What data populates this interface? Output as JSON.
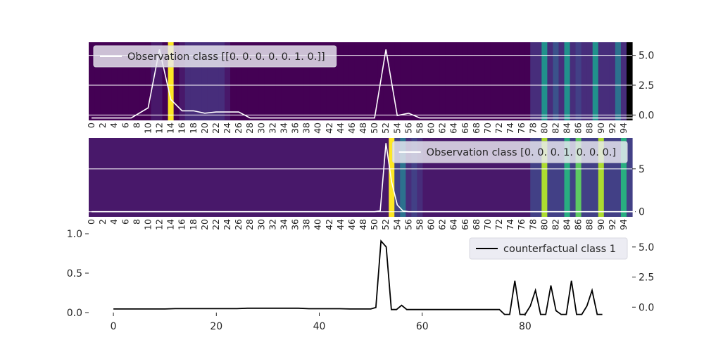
{
  "chart_data": [
    {
      "type": "heatmap",
      "panel": "observation-1",
      "x_tick_labels": [
        "0",
        "2",
        "4",
        "6",
        "8",
        "10",
        "12",
        "14",
        "16",
        "18",
        "20",
        "22",
        "24",
        "26",
        "28",
        "30",
        "32",
        "34",
        "36",
        "38",
        "40",
        "42",
        "44",
        "46",
        "48",
        "50",
        "52",
        "54",
        "56",
        "58",
        "60",
        "62",
        "64",
        "66",
        "68",
        "70",
        "72",
        "74",
        "76",
        "78",
        "80",
        "82",
        "84",
        "86",
        "88",
        "90",
        "92",
        "94"
      ],
      "y_ticks": [
        0.0,
        2.5,
        5.0
      ],
      "y_tick_labels": [
        "0.0",
        "2.5",
        "5.0"
      ],
      "ylim": [
        -0.45,
        6.1
      ],
      "grid": true,
      "legend_placement": "top-left",
      "series": [
        {
          "name": "Observation class [[0. 0. 0. 0. 0. 1. 0.]]",
          "color": "#ffffff",
          "x": [
            0,
            7,
            10,
            12,
            14,
            16,
            18,
            20,
            22,
            24,
            26,
            28,
            30,
            32,
            34,
            36,
            38,
            40,
            42,
            44,
            46,
            48,
            50,
            52,
            54,
            56,
            58,
            60,
            62,
            64,
            66,
            68,
            70,
            72,
            74,
            76,
            78,
            80,
            82,
            84,
            86,
            88,
            90,
            92,
            94,
            96
          ],
          "values": [
            -0.25,
            -0.25,
            0.6,
            5.5,
            1.3,
            0.35,
            0.35,
            0.15,
            0.25,
            0.25,
            0.25,
            -0.25,
            -0.25,
            -0.25,
            -0.25,
            -0.25,
            -0.25,
            -0.25,
            -0.25,
            -0.25,
            -0.25,
            -0.25,
            -0.25,
            5.5,
            -0.05,
            0.15,
            -0.25,
            -0.25,
            -0.25,
            -0.25,
            -0.25,
            -0.25,
            -0.25,
            -0.25,
            -0.25,
            -0.25,
            -0.25,
            -0.25,
            -0.25,
            -0.25,
            -0.25,
            -0.25,
            -0.25,
            -0.25,
            -0.25,
            -0.25
          ]
        }
      ]
    },
    {
      "type": "heatmap",
      "panel": "observation-2",
      "x_tick_labels": [
        "0",
        "2",
        "4",
        "6",
        "8",
        "10",
        "12",
        "14",
        "16",
        "18",
        "20",
        "22",
        "24",
        "26",
        "28",
        "30",
        "32",
        "34",
        "36",
        "38",
        "40",
        "42",
        "44",
        "46",
        "48",
        "50",
        "52",
        "54",
        "56",
        "58",
        "60",
        "62",
        "64",
        "66",
        "68",
        "70",
        "72",
        "74",
        "76",
        "78",
        "80",
        "82",
        "84",
        "86",
        "88",
        "90",
        "92",
        "94"
      ],
      "y_ticks": [
        0,
        5
      ],
      "y_tick_labels": [
        "0",
        "5"
      ],
      "ylim": [
        -0.6,
        8.6
      ],
      "grid": true,
      "legend_placement": "top-right",
      "series": [
        {
          "name": "Observation class [0. 0. 0. 1. 0. 0. 0.]",
          "color": "#ffffff",
          "x": [
            0,
            50,
            51,
            52,
            53,
            54,
            55,
            56,
            58,
            60,
            70,
            80,
            90,
            96
          ],
          "values": [
            0,
            0,
            0.1,
            8.0,
            3.5,
            0.8,
            0.1,
            0,
            0,
            0,
            0,
            0,
            0,
            0
          ]
        }
      ]
    },
    {
      "type": "line",
      "panel": "counterfactual",
      "x_ticks": [
        0,
        20,
        40,
        60,
        80
      ],
      "x_tick_labels": [
        "0",
        "20",
        "40",
        "60",
        "80"
      ],
      "xlim": [
        -4.8,
        100.8
      ],
      "left_y_ticks": [
        0.0,
        0.5,
        1.0
      ],
      "left_y_tick_labels": [
        "0.0",
        "0.5",
        "1.0"
      ],
      "left_ylim": [
        0,
        1
      ],
      "right_y_ticks": [
        0.0,
        2.5,
        5.0
      ],
      "right_y_tick_labels": [
        "0.0",
        "2.5",
        "5.0"
      ],
      "right_ylim": [
        -0.45,
        6.1
      ],
      "grid": false,
      "legend_placement": "top-right",
      "series": [
        {
          "name": "counterfactual class 1",
          "color": "#000000",
          "x": [
            0,
            10,
            12,
            24,
            26,
            36,
            38,
            44,
            46,
            50,
            51,
            52,
            53,
            54,
            55,
            56,
            57,
            58,
            60,
            70,
            75,
            76,
            77,
            78,
            79,
            80,
            81,
            82,
            83,
            84,
            85,
            86,
            87,
            88,
            89,
            90,
            91,
            92,
            93,
            94,
            95
          ],
          "values": [
            -0.15,
            -0.15,
            -0.12,
            -0.12,
            -0.09,
            -0.09,
            -0.13,
            -0.13,
            -0.15,
            -0.15,
            -0.03,
            5.5,
            5.0,
            -0.2,
            -0.2,
            0.15,
            -0.2,
            -0.2,
            -0.2,
            -0.2,
            -0.2,
            -0.6,
            -0.6,
            2.2,
            -0.6,
            -0.6,
            0.1,
            1.4,
            -0.6,
            -0.6,
            1.8,
            -0.3,
            -0.6,
            -0.6,
            2.2,
            -0.6,
            -0.6,
            0.1,
            1.4,
            -0.6,
            -0.6
          ]
        }
      ]
    }
  ],
  "heatmap": {
    "palette": [
      "#440154",
      "#48186a",
      "#472d7b",
      "#424086",
      "#3b528b",
      "#33638d",
      "#2c728e",
      "#21918c",
      "#28ae80",
      "#5ec962",
      "#addc30",
      "#fde725"
    ],
    "cells_observation_1": [
      0,
      0,
      0,
      0,
      0,
      0,
      0,
      0,
      0,
      0,
      0,
      1,
      1,
      0,
      11,
      0,
      1,
      2,
      2,
      2,
      2,
      2,
      2,
      2,
      1,
      0,
      0,
      0,
      0,
      0,
      0,
      0,
      0,
      0,
      0,
      0,
      0,
      0,
      0,
      0,
      0,
      0,
      0,
      0,
      0,
      0,
      0,
      0,
      0,
      0,
      0,
      0,
      0,
      0,
      0,
      0,
      0,
      0,
      0,
      0,
      0,
      0,
      0,
      0,
      0,
      0,
      0,
      0,
      0,
      0,
      0,
      0,
      0,
      0,
      0,
      0,
      0,
      0,
      2,
      2,
      7,
      2,
      4,
      2,
      7,
      2,
      3,
      2,
      2,
      7,
      2,
      2,
      2,
      6,
      2
    ],
    "cells_observation_2": [
      1,
      1,
      1,
      1,
      1,
      1,
      1,
      1,
      1,
      1,
      1,
      1,
      1,
      1,
      1,
      1,
      1,
      1,
      1,
      1,
      1,
      1,
      1,
      1,
      1,
      1,
      1,
      1,
      1,
      1,
      1,
      1,
      1,
      1,
      1,
      1,
      1,
      1,
      1,
      1,
      1,
      1,
      1,
      1,
      1,
      1,
      1,
      1,
      1,
      1,
      1,
      1,
      1,
      11,
      3,
      6,
      2,
      3,
      2,
      1,
      1,
      1,
      1,
      1,
      1,
      1,
      1,
      1,
      1,
      1,
      1,
      1,
      1,
      1,
      1,
      1,
      1,
      1,
      3,
      3,
      10,
      3,
      3,
      3,
      8,
      3,
      9,
      3,
      3,
      3,
      10,
      3,
      3,
      3,
      8,
      3
    ]
  }
}
